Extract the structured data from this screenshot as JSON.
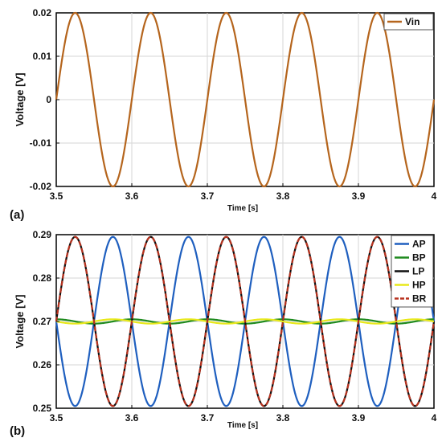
{
  "chart_data": [
    {
      "panel_label": "(a)",
      "type": "line",
      "xlabel": "Time [s]",
      "ylabel": "Voltage [V]",
      "xlim": [
        3.5,
        4.0
      ],
      "ylim": [
        -0.02,
        0.02
      ],
      "xticks": [
        "3.5",
        "3.6",
        "3.7",
        "3.8",
        "3.9",
        "4"
      ],
      "yticks": [
        "-0.02",
        "-0.01",
        "0",
        "0.01",
        "0.02"
      ],
      "grid": true,
      "legend_position": "top-right",
      "series": [
        {
          "name": "Vin",
          "color": "#B5651D",
          "dash": false,
          "offset": 0.0,
          "amplitude": 0.02,
          "frequency_hz": 10,
          "phase_deg": 0
        }
      ]
    },
    {
      "panel_label": "(b)",
      "type": "line",
      "xlabel": "Time [s]",
      "ylabel": "Voltage [V]",
      "xlim": [
        3.5,
        4.0
      ],
      "ylim": [
        0.25,
        0.29
      ],
      "xticks": [
        "3.5",
        "3.6",
        "3.7",
        "3.8",
        "3.9",
        "4"
      ],
      "yticks": [
        "0.25",
        "0.26",
        "0.27",
        "0.28",
        "0.29"
      ],
      "grid": true,
      "legend_position": "top-right",
      "series": [
        {
          "name": "AP",
          "color": "#1F5FBF",
          "dash": false,
          "offset": 0.27,
          "amplitude": 0.0195,
          "frequency_hz": 10,
          "phase_deg": 180
        },
        {
          "name": "BP",
          "color": "#1E8A1E",
          "dash": false,
          "offset": 0.27,
          "amplitude": 0.0005,
          "frequency_hz": 10,
          "phase_deg": 90
        },
        {
          "name": "LP",
          "color": "#111111",
          "dash": false,
          "offset": 0.27,
          "amplitude": 0.0195,
          "frequency_hz": 10,
          "phase_deg": 0
        },
        {
          "name": "HP",
          "color": "#E8E81A",
          "dash": false,
          "offset": 0.27,
          "amplitude": 0.0005,
          "frequency_hz": 10,
          "phase_deg": 180
        },
        {
          "name": "BR",
          "color": "#B8321E",
          "dash": true,
          "offset": 0.27,
          "amplitude": 0.0195,
          "frequency_hz": 10,
          "phase_deg": 0
        }
      ]
    }
  ]
}
